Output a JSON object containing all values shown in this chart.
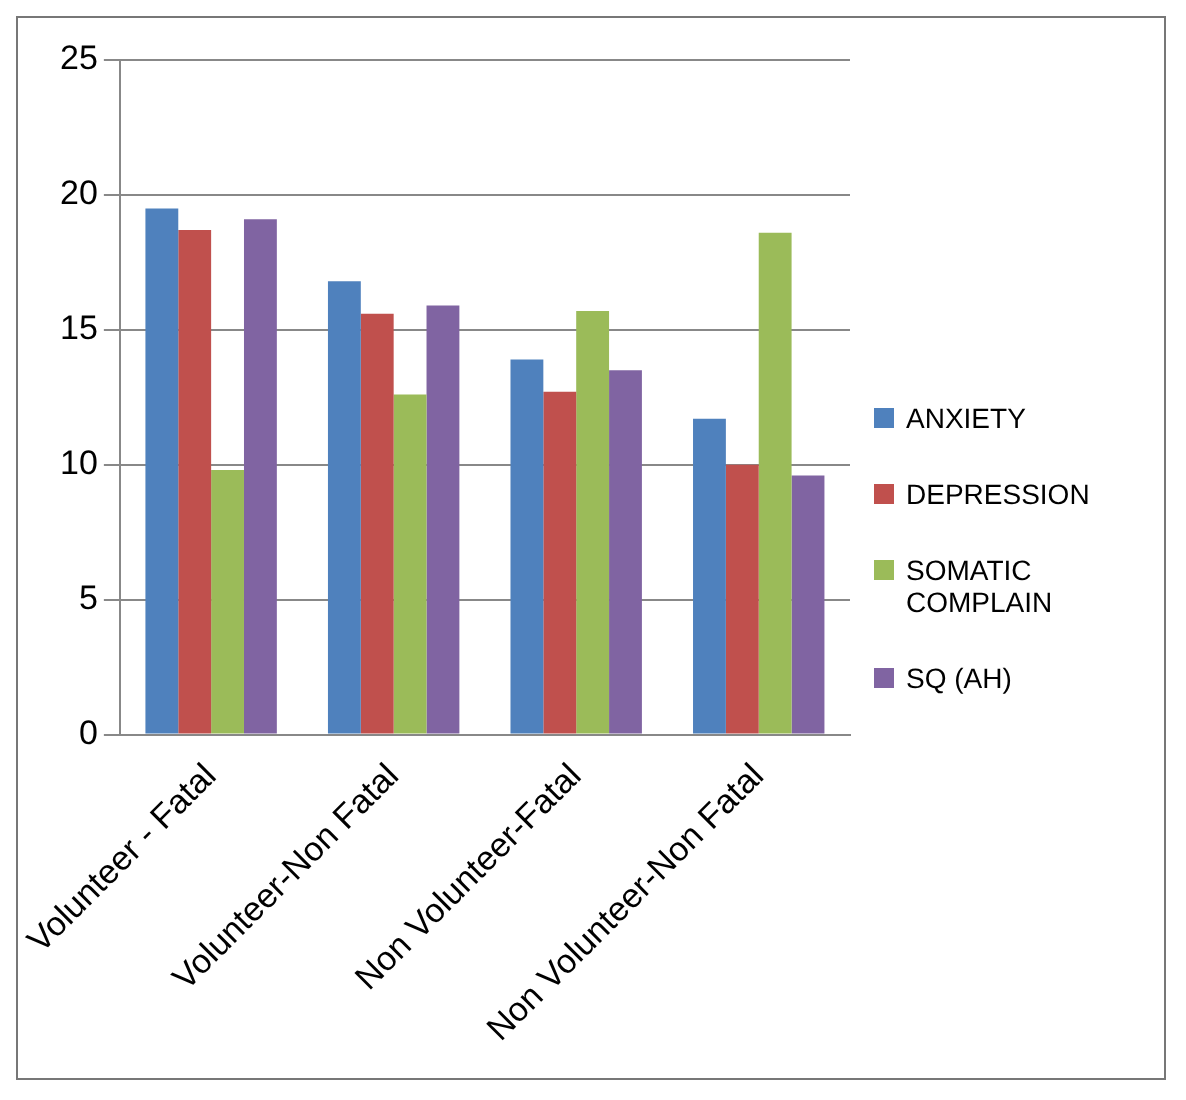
{
  "chart_data": {
    "type": "bar",
    "categories": [
      "Volunteer - Fatal",
      "Volunteer-Non Fatal",
      "Non Volunteer-Fatal",
      "Non Volunteer-Non Fatal"
    ],
    "series": [
      {
        "name": "ANXIETY",
        "color": "#4f81bd",
        "values": [
          19.5,
          16.8,
          13.9,
          11.7
        ]
      },
      {
        "name": "DEPRESSION",
        "color": "#c0504d",
        "values": [
          18.7,
          15.6,
          12.7,
          10.0
        ]
      },
      {
        "name": "SOMATIC COMPLAIN",
        "color": "#9bbb59",
        "values": [
          9.8,
          12.6,
          15.7,
          18.6
        ]
      },
      {
        "name": "SQ (AH)",
        "color": "#8064a2",
        "values": [
          19.1,
          15.9,
          13.5,
          9.6
        ]
      }
    ],
    "ylim": [
      0,
      25
    ],
    "yticks": [
      0,
      5,
      10,
      15,
      20,
      25
    ],
    "grid": "y",
    "legend": "right"
  }
}
